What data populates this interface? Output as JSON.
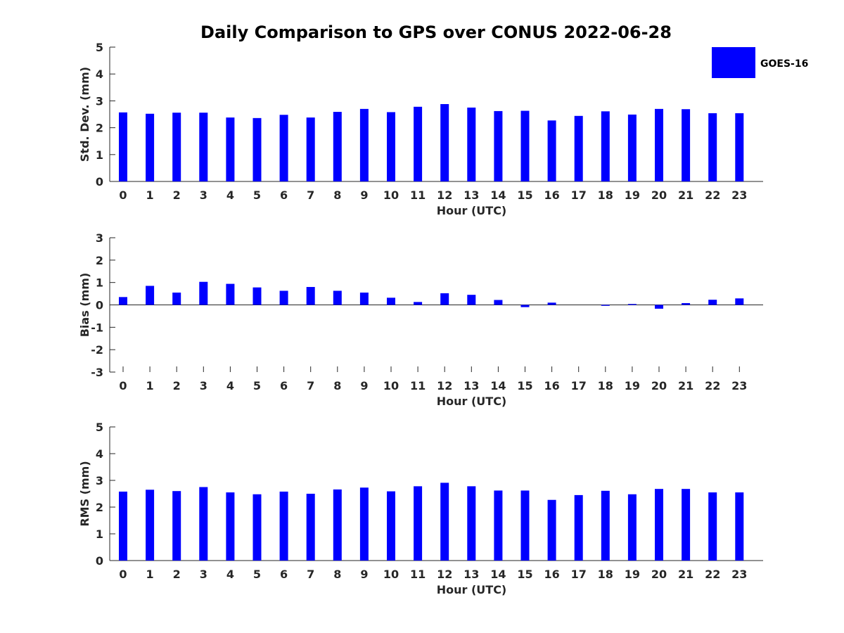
{
  "chart_data": {
    "type": "bar",
    "title": "Daily Comparison to GPS over CONUS 2022-06-28",
    "legend": {
      "label": "GOES-16",
      "placement": "top-right"
    },
    "color": "#0000FF",
    "hours": [
      0,
      1,
      2,
      3,
      4,
      5,
      6,
      7,
      8,
      9,
      10,
      11,
      12,
      13,
      14,
      15,
      16,
      17,
      18,
      19,
      20,
      21,
      22,
      23
    ],
    "panels": [
      {
        "key": "std",
        "ylabel": "Std. Dev. (mm)",
        "xlabel": "Hour (UTC)",
        "ylim": [
          0,
          5
        ],
        "yticks": [
          0,
          1,
          2,
          3,
          4,
          5
        ],
        "values": [
          2.57,
          2.52,
          2.56,
          2.56,
          2.38,
          2.36,
          2.48,
          2.38,
          2.59,
          2.7,
          2.58,
          2.78,
          2.88,
          2.75,
          2.62,
          2.63,
          2.27,
          2.44,
          2.61,
          2.49,
          2.7,
          2.69,
          2.54,
          2.54
        ]
      },
      {
        "key": "bias",
        "ylabel": "Bias (mm)",
        "xlabel": "Hour (UTC)",
        "ylim": [
          -3,
          3
        ],
        "yticks": [
          -3,
          -2,
          -1,
          0,
          1,
          2,
          3
        ],
        "values": [
          0.35,
          0.85,
          0.55,
          1.03,
          0.94,
          0.78,
          0.63,
          0.8,
          0.63,
          0.55,
          0.32,
          0.13,
          0.52,
          0.45,
          0.22,
          -0.1,
          0.1,
          0.0,
          -0.04,
          0.04,
          -0.17,
          0.08,
          0.23,
          0.29
        ]
      },
      {
        "key": "rms",
        "ylabel": "RMS (mm)",
        "xlabel": "Hour (UTC)",
        "ylim": [
          0,
          5
        ],
        "yticks": [
          0,
          1,
          2,
          3,
          4,
          5
        ],
        "values": [
          2.58,
          2.65,
          2.6,
          2.75,
          2.55,
          2.48,
          2.58,
          2.5,
          2.66,
          2.73,
          2.59,
          2.78,
          2.91,
          2.78,
          2.62,
          2.62,
          2.27,
          2.45,
          2.61,
          2.48,
          2.68,
          2.68,
          2.55,
          2.55
        ]
      }
    ]
  }
}
